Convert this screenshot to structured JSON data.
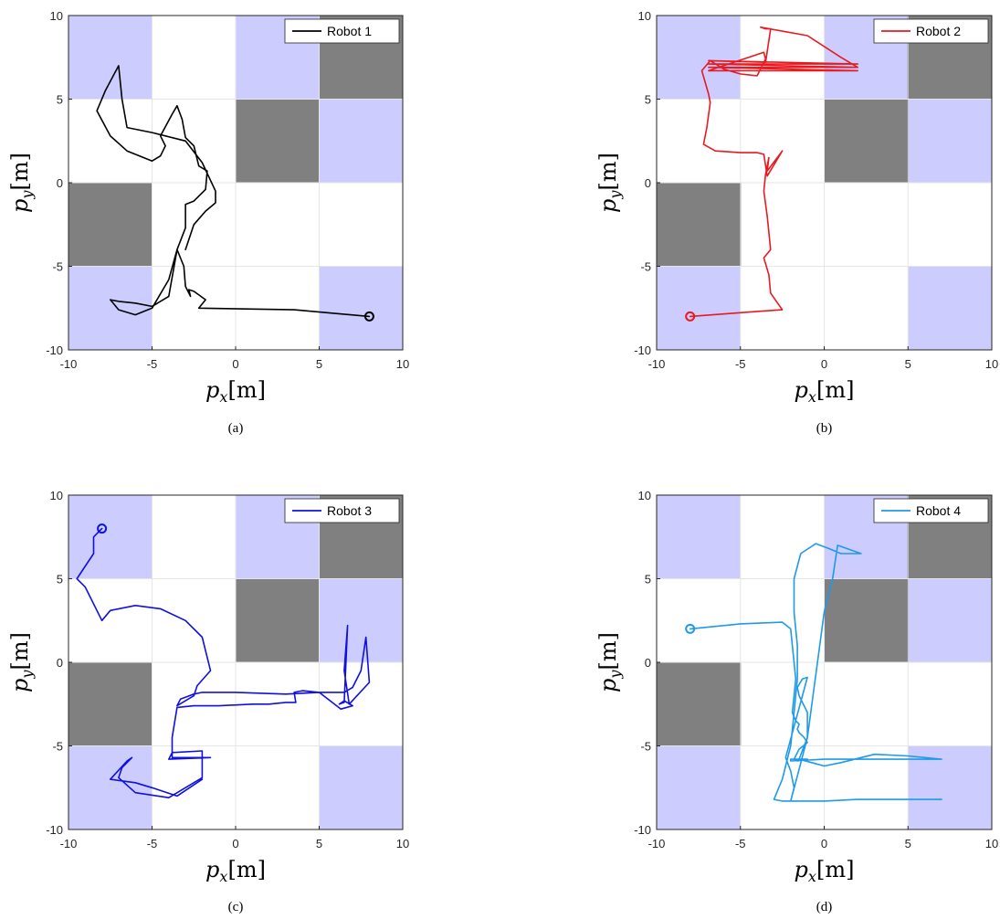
{
  "chart_data": [
    {
      "type": "line",
      "panel": "a",
      "caption": "(a)",
      "xlabel": "p_x [m]",
      "ylabel": "p_y [m]",
      "xlim": [
        -10,
        10
      ],
      "ylim": [
        -10,
        10
      ],
      "xticks": [
        -10,
        -5,
        0,
        5,
        10
      ],
      "yticks": [
        -10,
        -5,
        0,
        5,
        10
      ],
      "grid": true,
      "legend_position": "top-right",
      "series": [
        {
          "name": "Robot 1",
          "color": "#000000",
          "start_marker": [
            8,
            -8
          ],
          "x": [
            8,
            3.5,
            -2.2,
            -1.8,
            -2.5,
            -2.8,
            -2.7,
            -3,
            -3.1,
            -3.5,
            -4,
            -5,
            -6,
            -7,
            -7.5,
            -7,
            -6,
            -5,
            -4,
            -3.5,
            -3,
            -3,
            -2.5,
            -1.8,
            -1.7,
            -2.2,
            -2.5,
            -3,
            -3.2,
            -3.5,
            -3.8,
            -4.5,
            -4.2,
            -4.5,
            -5,
            -6.5,
            -7.5,
            -8.3,
            -7.8,
            -7,
            -6.8,
            -6.5,
            -5,
            -3,
            -2,
            -1.2,
            -1.2,
            -1.8,
            -2.5,
            -3
          ],
          "y": [
            -8,
            -7.6,
            -7.5,
            -7,
            -6.5,
            -6.4,
            -6.8,
            -6.2,
            -5,
            -4,
            -5.8,
            -7.5,
            -7.9,
            -7.6,
            -7,
            -7.1,
            -7.2,
            -7.4,
            -6.8,
            -4,
            -2.7,
            -1.3,
            -1.1,
            -0.4,
            0.7,
            1,
            2.2,
            2.7,
            3.8,
            4.6,
            4.1,
            2.8,
            2.2,
            1.6,
            1.3,
            1.9,
            2.8,
            4.3,
            5.5,
            7,
            5,
            3.3,
            3,
            2.5,
            1.2,
            -0.5,
            -1.2,
            -1.7,
            -2.5,
            -4
          ]
        }
      ]
    },
    {
      "type": "line",
      "panel": "b",
      "caption": "(b)",
      "xlabel": "p_x [m]",
      "ylabel": "p_y [m]",
      "xlim": [
        -10,
        10
      ],
      "ylim": [
        -10,
        10
      ],
      "xticks": [
        -10,
        -5,
        0,
        5,
        10
      ],
      "yticks": [
        -10,
        -5,
        0,
        5,
        10
      ],
      "grid": true,
      "legend_position": "top-right",
      "series": [
        {
          "name": "Robot 2",
          "color": "#e8191f",
          "start_marker": [
            -8,
            -8
          ],
          "x": [
            -8,
            -4,
            -2.5,
            -3.2,
            -3.3,
            -3.6,
            -3.2,
            -3.4,
            -3.6,
            -3.5,
            -3.3,
            -3.4,
            -2.5,
            -3.4,
            -3.6,
            -4,
            -5,
            -6.5,
            -7.2,
            -7,
            -6.8,
            -6.9,
            -7.3,
            -6.8,
            -6,
            -5,
            -4,
            -3.5,
            -3.6,
            -6.9,
            2,
            -6.9,
            2,
            -6.9,
            2,
            -6.9,
            -3.5,
            -3.3,
            -3.2,
            -3.5,
            -3.8,
            -1,
            1,
            2
          ],
          "y": [
            -8,
            -7.7,
            -7.6,
            -6.6,
            -5.5,
            -4.5,
            -4,
            -2,
            -0.5,
            0.5,
            1.5,
            0.7,
            1.9,
            0.4,
            1.7,
            1.8,
            1.8,
            1.9,
            2.3,
            3.3,
            4.8,
            5.3,
            6.7,
            7.3,
            6.8,
            6.5,
            6.4,
            7.4,
            7.8,
            6.7,
            6.7,
            6.9,
            6.9,
            7.1,
            7.1,
            7.3,
            7.2,
            8.5,
            9.2,
            9.2,
            9.3,
            8.8,
            7.5,
            6.9
          ]
        }
      ]
    },
    {
      "type": "line",
      "panel": "c",
      "caption": "(c)",
      "xlabel": "p_x [m]",
      "ylabel": "p_y [m]",
      "xlim": [
        -10,
        10
      ],
      "ylim": [
        -10,
        10
      ],
      "xticks": [
        -10,
        -5,
        0,
        5,
        10
      ],
      "yticks": [
        -10,
        -5,
        0,
        5,
        10
      ],
      "grid": true,
      "legend_position": "top-right",
      "series": [
        {
          "name": "Robot 3",
          "color": "#1010e0",
          "start_marker": [
            -8,
            8
          ],
          "x": [
            -8,
            -8.5,
            -8.5,
            -9.5,
            -9,
            -8,
            -7.5,
            -6,
            -4.5,
            -3,
            -2,
            -1.5,
            -2.3,
            -2.5,
            -3.5,
            -3.3,
            -2.5,
            -2,
            0,
            3,
            5,
            6.5,
            7,
            7.5,
            7.8,
            8,
            6.8,
            6.5,
            6.7,
            6.5,
            6.2,
            6.5,
            7,
            6.3,
            5,
            4,
            3.5,
            3.6,
            3,
            2,
            1,
            -1,
            -2.5,
            -3.5,
            -3.8,
            -3.8,
            -1.5,
            -4,
            -3.8,
            -2,
            -2,
            -4,
            -6,
            -7,
            -6.8,
            -6.2,
            -6.5,
            -7.5,
            -6,
            -5,
            -3.5,
            -2
          ],
          "y": [
            8,
            7.5,
            6.5,
            5,
            4.5,
            2.5,
            3.1,
            3.4,
            3.2,
            2.5,
            1.5,
            -0.5,
            -1.4,
            -2,
            -2.6,
            -2.2,
            -1.9,
            -1.8,
            -1.8,
            -1.9,
            -1.8,
            -1.8,
            -1.5,
            -0.5,
            1.5,
            -1.2,
            -2.5,
            -0.5,
            2.2,
            -2.4,
            -2.5,
            -2.3,
            -2.6,
            -2.8,
            -1.8,
            -1.7,
            -1.8,
            -2.4,
            -2.4,
            -2.5,
            -2.5,
            -2.6,
            -2.6,
            -2.7,
            -4.5,
            -5.7,
            -5.7,
            -5.8,
            -5.4,
            -5.3,
            -6.9,
            -8.1,
            -7.8,
            -6.9,
            -6.3,
            -5.7,
            -5.9,
            -7,
            -7.2,
            -7.5,
            -8,
            -7
          ]
        }
      ]
    },
    {
      "type": "line",
      "panel": "d",
      "caption": "(d)",
      "xlabel": "p_x [m]",
      "ylabel": "p_y [m]",
      "xlim": [
        -10,
        10
      ],
      "ylim": [
        -10,
        10
      ],
      "xticks": [
        -10,
        -5,
        0,
        5,
        10
      ],
      "yticks": [
        -10,
        -5,
        0,
        5,
        10
      ],
      "grid": true,
      "legend_position": "top-right",
      "series": [
        {
          "name": "Robot 4",
          "color": "#1f9ae8",
          "start_marker": [
            -8,
            2
          ],
          "x": [
            -8,
            -5,
            -2.5,
            -2,
            -1.9,
            -1.8,
            -1.7,
            -1.8,
            -1.9,
            -1.7,
            -1.5,
            -1.6,
            -1.5,
            -1.2,
            -1,
            -1.5,
            -1.8,
            -1.6,
            -1,
            -2,
            -2,
            0,
            1,
            3,
            5,
            7,
            7,
            5,
            3,
            1,
            0,
            -1.5,
            -1.5,
            -1,
            -1,
            -1.5,
            -1.6,
            -1.3,
            -1,
            -2.3,
            -2,
            -1.8,
            -2,
            -1.6,
            -1,
            0,
            0.5,
            0.8,
            2.2,
            1,
            0.3,
            -0.5,
            -1.4,
            -1.8,
            -1.8,
            -1.6,
            -1.6,
            -1.8,
            -2,
            -2.5,
            -3,
            -2.5,
            0,
            2,
            4,
            7
          ],
          "y": [
            2,
            2.3,
            2.4,
            2,
            1,
            0,
            -1,
            -2,
            -3,
            -3.5,
            -3.7,
            -4,
            -4.2,
            -4.5,
            -4.8,
            -5.2,
            -5.8,
            -5.9,
            -5.8,
            -5.8,
            -5.9,
            -5.8,
            -5.8,
            -5.8,
            -5.8,
            -5.8,
            -5.8,
            -5.6,
            -5.5,
            -6,
            -6.2,
            -5.8,
            -5.8,
            -4.5,
            -3,
            -2,
            -1.5,
            -1,
            -0.9,
            -5.7,
            -6.5,
            -7.5,
            -8.3,
            -6.8,
            -4.5,
            3,
            5,
            7,
            6.5,
            6.5,
            6.8,
            7.1,
            6.5,
            5,
            3,
            1,
            -1,
            -3,
            -5,
            -7,
            -8.2,
            -8.3,
            -8.3,
            -8.2,
            -8.2,
            -8.2
          ]
        }
      ]
    }
  ],
  "tiles": {
    "dark_color": "#808080",
    "light_color": "#ccccff",
    "dark": [
      [
        5,
        10,
        5,
        10
      ],
      [
        0,
        5,
        0,
        5
      ],
      [
        -10,
        -5,
        -5,
        0
      ]
    ],
    "light": [
      [
        -10,
        -5,
        5,
        10
      ],
      [
        0,
        5,
        5,
        10
      ],
      [
        5,
        10,
        0,
        5
      ],
      [
        -10,
        -5,
        -10,
        -5
      ],
      [
        5,
        10,
        -10,
        -5
      ]
    ]
  }
}
